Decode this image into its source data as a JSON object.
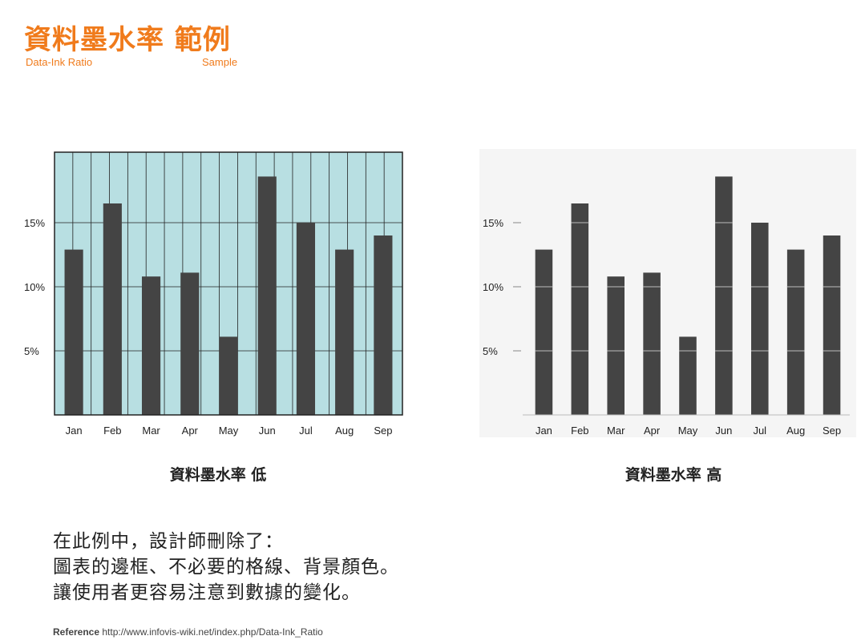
{
  "header": {
    "title": "資料墨水率 範例",
    "subtitle_left": "Data-Ink Ratio",
    "subtitle_right": "Sample"
  },
  "captions": {
    "low": "資料墨水率 低",
    "high": "資料墨水率 高"
  },
  "description": [
    "在此例中，設計師刪除了：",
    "圖表的邊框、不必要的格線、背景顏色。",
    "讓使用者更容易注意到數據的變化。"
  ],
  "reference": {
    "label": "Reference",
    "url": "http://www.infovis-wiki.net/index.php/Data-Ink_Ratio"
  },
  "colors": {
    "accent": "#f07b1c",
    "bar": "#444444",
    "low_background": "#b8dfe2",
    "high_background": "#f5f5f5"
  },
  "chart_data": [
    {
      "type": "bar",
      "style": "low-data-ink",
      "categories": [
        "Jan",
        "Feb",
        "Mar",
        "Apr",
        "May",
        "Jun",
        "Jul",
        "Aug",
        "Sep"
      ],
      "values": [
        12.9,
        16.5,
        10.8,
        11.1,
        6.1,
        18.6,
        15.0,
        12.9,
        14.0
      ],
      "yticks": [
        5,
        10,
        15
      ],
      "ytick_labels": [
        "5%",
        "10%",
        "15%"
      ],
      "ylim": [
        0,
        20.5
      ],
      "grid": true,
      "border": true,
      "background": true
    },
    {
      "type": "bar",
      "style": "high-data-ink",
      "categories": [
        "Jan",
        "Feb",
        "Mar",
        "Apr",
        "May",
        "Jun",
        "Jul",
        "Aug",
        "Sep"
      ],
      "values": [
        12.9,
        16.5,
        10.8,
        11.1,
        6.1,
        18.6,
        15.0,
        12.9,
        14.0
      ],
      "yticks": [
        5,
        10,
        15
      ],
      "ytick_labels": [
        "5%",
        "10%",
        "15%"
      ],
      "ylim": [
        0,
        20.5
      ],
      "grid": false,
      "border": false,
      "background": true
    }
  ]
}
